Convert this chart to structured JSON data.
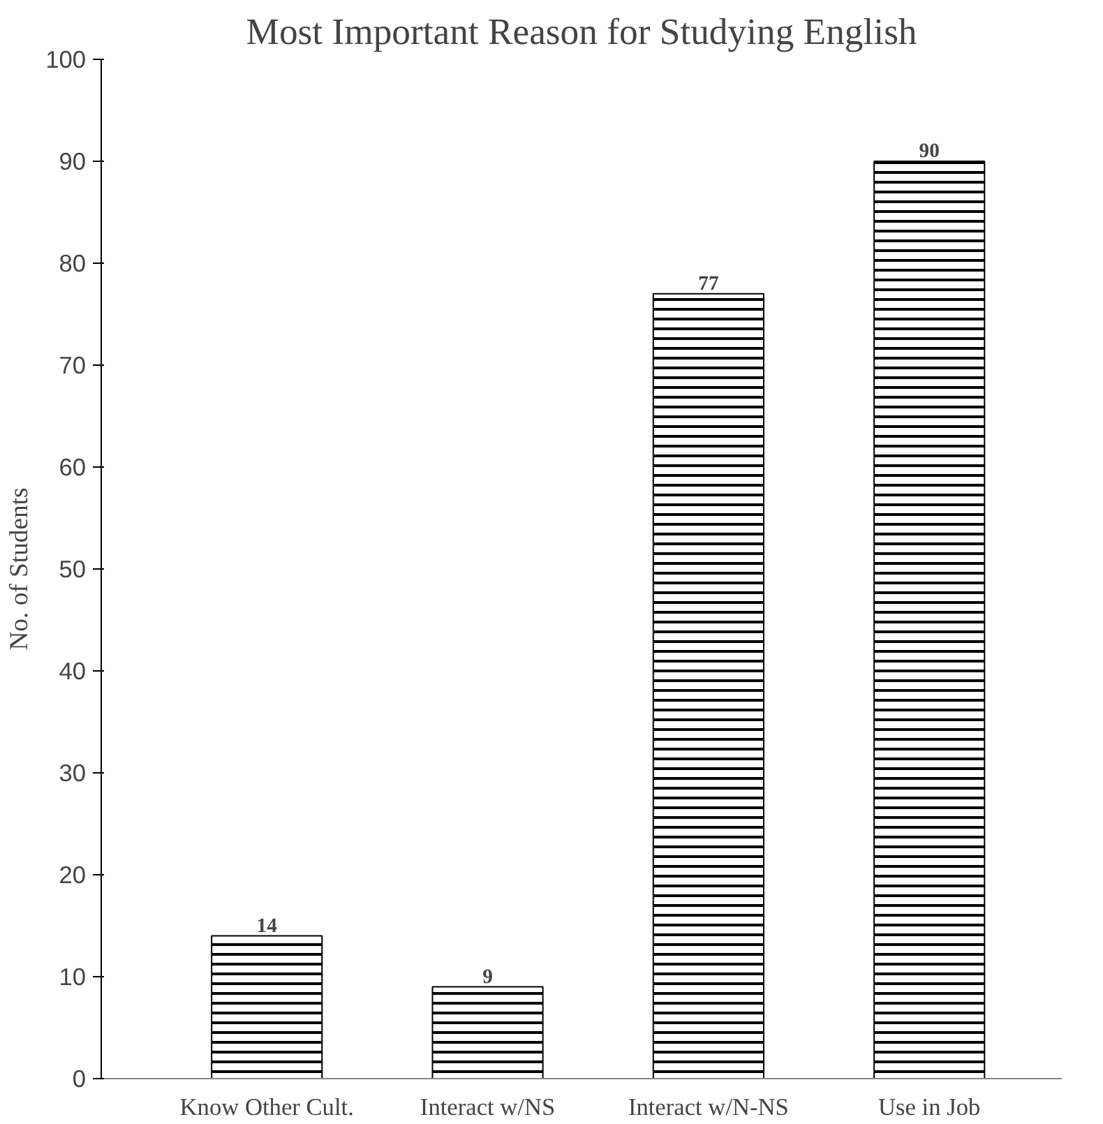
{
  "chart_data": {
    "type": "bar",
    "title": "Most Important Reason for Studying English",
    "ylabel": "No. of Students",
    "categories": [
      "Know Other Cult.",
      "Interact w/NS",
      "Interact w/N-NS",
      "Use in Job"
    ],
    "values": [
      14,
      9,
      77,
      90
    ],
    "color": "#000000",
    "ylim": [
      0,
      100
    ],
    "yticks": [
      0,
      10,
      20,
      30,
      40,
      50,
      60,
      70,
      80,
      90,
      100
    ],
    "grid": false,
    "data_labels": true
  }
}
